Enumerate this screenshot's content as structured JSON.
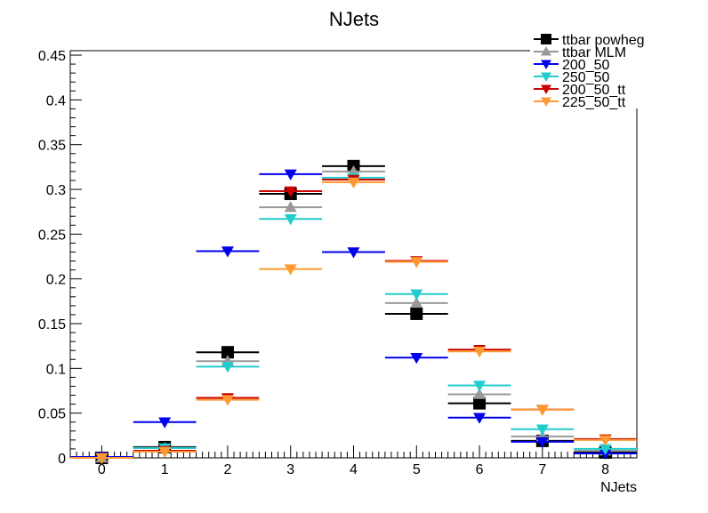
{
  "chart_data": {
    "type": "scatter",
    "title": "NJets",
    "xlabel": "NJets",
    "ylabel": "",
    "xlim": [
      -0.5,
      8.5
    ],
    "ylim": [
      0,
      0.455
    ],
    "x_ticks": [
      "0",
      "1",
      "2",
      "3",
      "4",
      "5",
      "6",
      "7",
      "8"
    ],
    "y_ticks": [
      "0",
      "0.05",
      "0.1",
      "0.15",
      "0.2",
      "0.25",
      "0.3",
      "0.35",
      "0.4",
      "0.45"
    ],
    "grid": false,
    "legend_position": "top-right",
    "x": [
      0,
      1,
      2,
      3,
      4,
      5,
      6,
      7,
      8
    ],
    "series": [
      {
        "name": "ttbar powheg",
        "color": "#000000",
        "marker": "square",
        "values": [
          0.0,
          0.012,
          0.118,
          0.295,
          0.326,
          0.161,
          0.061,
          0.019,
          0.006
        ]
      },
      {
        "name": "ttbar MLM",
        "color": "#999999",
        "marker": "triangle-up",
        "values": [
          0.0,
          0.011,
          0.108,
          0.28,
          0.32,
          0.173,
          0.071,
          0.024,
          0.008
        ]
      },
      {
        "name": "200_50",
        "color": "#0000ee",
        "marker": "triangle-down",
        "values": [
          0.001,
          0.04,
          0.231,
          0.317,
          0.23,
          0.112,
          0.045,
          0.018,
          0.005
        ]
      },
      {
        "name": "250_50",
        "color": "#22cccc",
        "marker": "triangle-down",
        "values": [
          0.0,
          0.011,
          0.102,
          0.267,
          0.313,
          0.183,
          0.081,
          0.032,
          0.01
        ]
      },
      {
        "name": "200_50_tt",
        "color": "#cc0000",
        "marker": "triangle-down",
        "values": [
          0.0,
          0.008,
          0.067,
          0.298,
          0.311,
          0.22,
          0.121,
          0.054,
          0.021
        ]
      },
      {
        "name": "225_50_tt",
        "color": "#ff9933",
        "marker": "triangle-down",
        "values": [
          0.0,
          0.007,
          0.065,
          0.211,
          0.308,
          0.219,
          0.119,
          0.054,
          0.02
        ]
      }
    ]
  }
}
